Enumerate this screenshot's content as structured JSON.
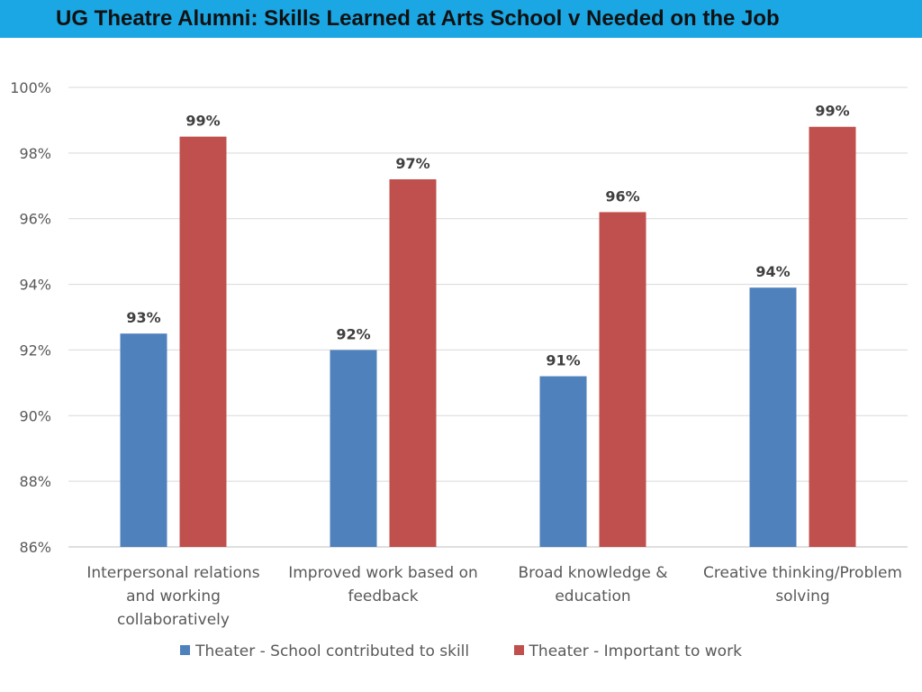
{
  "title": "UG Theatre Alumni: Skills Learned at Arts School v Needed on the Job",
  "chart_data": {
    "type": "bar",
    "categories": [
      [
        "Interpersonal relations",
        "and working",
        "collaboratively"
      ],
      [
        "Improved work based on",
        "feedback"
      ],
      [
        "Broad knowledge &",
        "education"
      ],
      [
        "Creative thinking/Problem",
        "solving"
      ]
    ],
    "series": [
      {
        "name": "Theater - School contributed to skill",
        "color": "#4f81bd",
        "values": [
          92.5,
          92.0,
          91.2,
          93.9
        ],
        "labels": [
          "93%",
          "92%",
          "91%",
          "94%"
        ]
      },
      {
        "name": "Theater - Important to work",
        "color": "#c0504d",
        "values": [
          98.5,
          97.2,
          96.2,
          98.8
        ],
        "labels": [
          "99%",
          "97%",
          "96%",
          "99%"
        ]
      }
    ],
    "ylim": [
      86,
      100
    ],
    "yticks": [
      "86%",
      "88%",
      "90%",
      "92%",
      "94%",
      "96%",
      "98%",
      "100%"
    ],
    "grid": true,
    "legend": "bottom"
  }
}
